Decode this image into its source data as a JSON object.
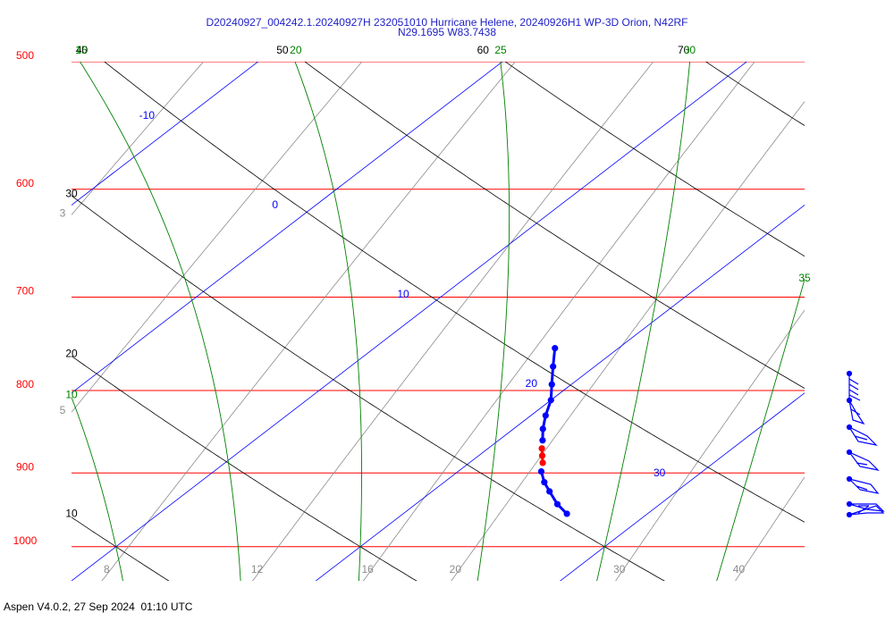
{
  "chart_data": {
    "type": "skew-t",
    "title": "D20240927_004242.1.20240927H 232051010 Hurricane Helene, 20240926H1 WP-3D Orion, N42RF",
    "subtitle": "N29.1695 W83.7438",
    "footer": "Aspen V4.0.2, 27 Sep 2024  01:10 UTC",
    "log_y": true,
    "ylim": [
      1050,
      500
    ],
    "yticks": [
      500,
      600,
      700,
      800,
      900,
      1000
    ],
    "xlim": [
      10,
      40
    ],
    "isobar_color": "#ff0000",
    "isotherms": {
      "values": [
        -10,
        0,
        10,
        20,
        30
      ],
      "color": "#0000ff"
    },
    "dry_adiabats": {
      "values": [
        10,
        20,
        30,
        40,
        50,
        60,
        70
      ],
      "color": "#000000"
    },
    "moist_adiabats": {
      "values": [
        10,
        15,
        20,
        25,
        30,
        35
      ],
      "color": "#008000"
    },
    "mixing_ratios": {
      "values": [
        3,
        5,
        8,
        12,
        16,
        20,
        30,
        40
      ],
      "color": "#8c8c8c"
    },
    "series": [
      {
        "color": "#0000ff",
        "pressure": [
          753,
          773,
          793,
          811,
          829,
          845,
          859
        ],
        "temperature": [
          17.4,
          18.3,
          19.2,
          20.0,
          20.6,
          21.2,
          21.8
        ]
      },
      {
        "color": "#ff0000",
        "pressure": [
          869,
          878,
          887
        ],
        "temperature": [
          22.2,
          22.6,
          23.0
        ]
      },
      {
        "color": "#0000ff",
        "pressure": [
          898,
          912,
          924,
          941,
          954
        ],
        "temperature": [
          23.4,
          24.1,
          24.8,
          25.8,
          26.7
        ]
      }
    ]
  }
}
